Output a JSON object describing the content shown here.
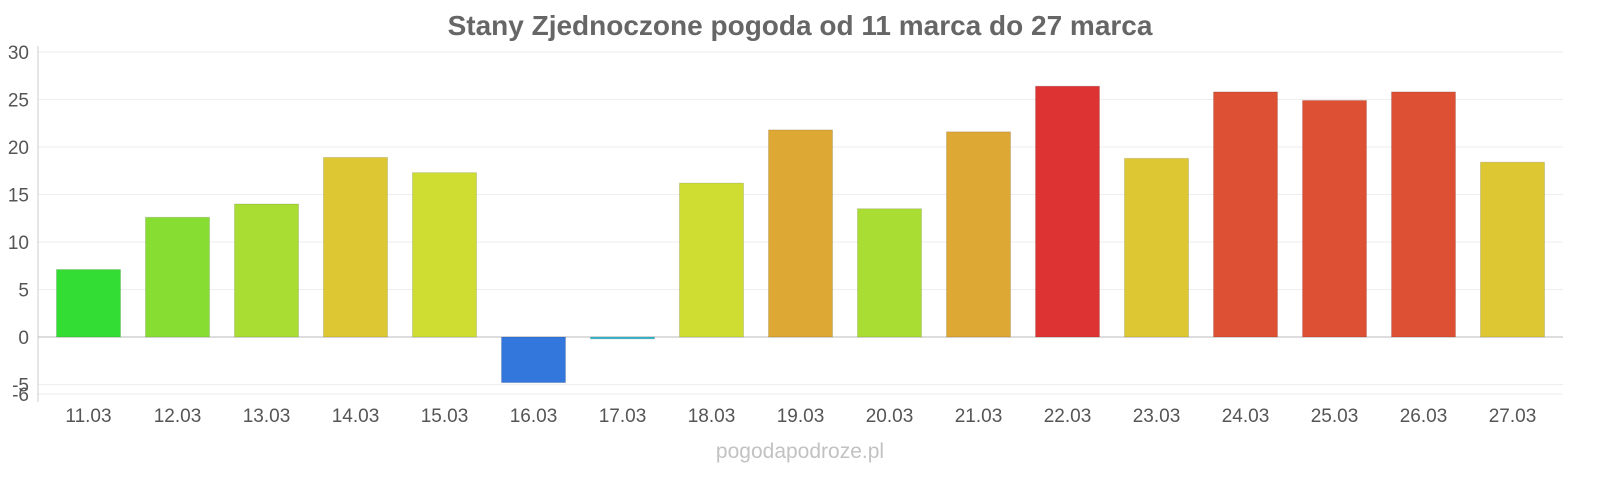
{
  "chart_data": {
    "type": "bar",
    "title": "Stany Zjednoczone pogoda od 11 marca do 27 marca",
    "xlabel": "",
    "ylabel": "",
    "ylim": [
      -6,
      30
    ],
    "yticks": [
      -6,
      -5,
      0,
      5,
      10,
      15,
      20,
      25,
      30
    ],
    "grid": true,
    "categories": [
      "11.03",
      "12.03",
      "13.03",
      "14.03",
      "15.03",
      "16.03",
      "17.03",
      "18.03",
      "19.03",
      "20.03",
      "21.03",
      "22.03",
      "23.03",
      "24.03",
      "25.03",
      "26.03",
      "27.03"
    ],
    "values": [
      7.1,
      12.6,
      14.0,
      18.9,
      17.3,
      -4.8,
      -0.2,
      16.2,
      21.8,
      13.5,
      21.6,
      26.4,
      18.8,
      25.8,
      24.9,
      25.8,
      18.4
    ],
    "colors": [
      "#33dd33",
      "#88dd33",
      "#aadd33",
      "#ddc833",
      "#cfdd33",
      "#3377dd",
      "#33bbcc",
      "#cfdd33",
      "#dda833",
      "#aadd33",
      "#dda833",
      "#dd3333",
      "#ddc833",
      "#dd5033",
      "#dd5033",
      "#dd5033",
      "#ddc833"
    ]
  },
  "watermark": "pogodapodroze.pl"
}
